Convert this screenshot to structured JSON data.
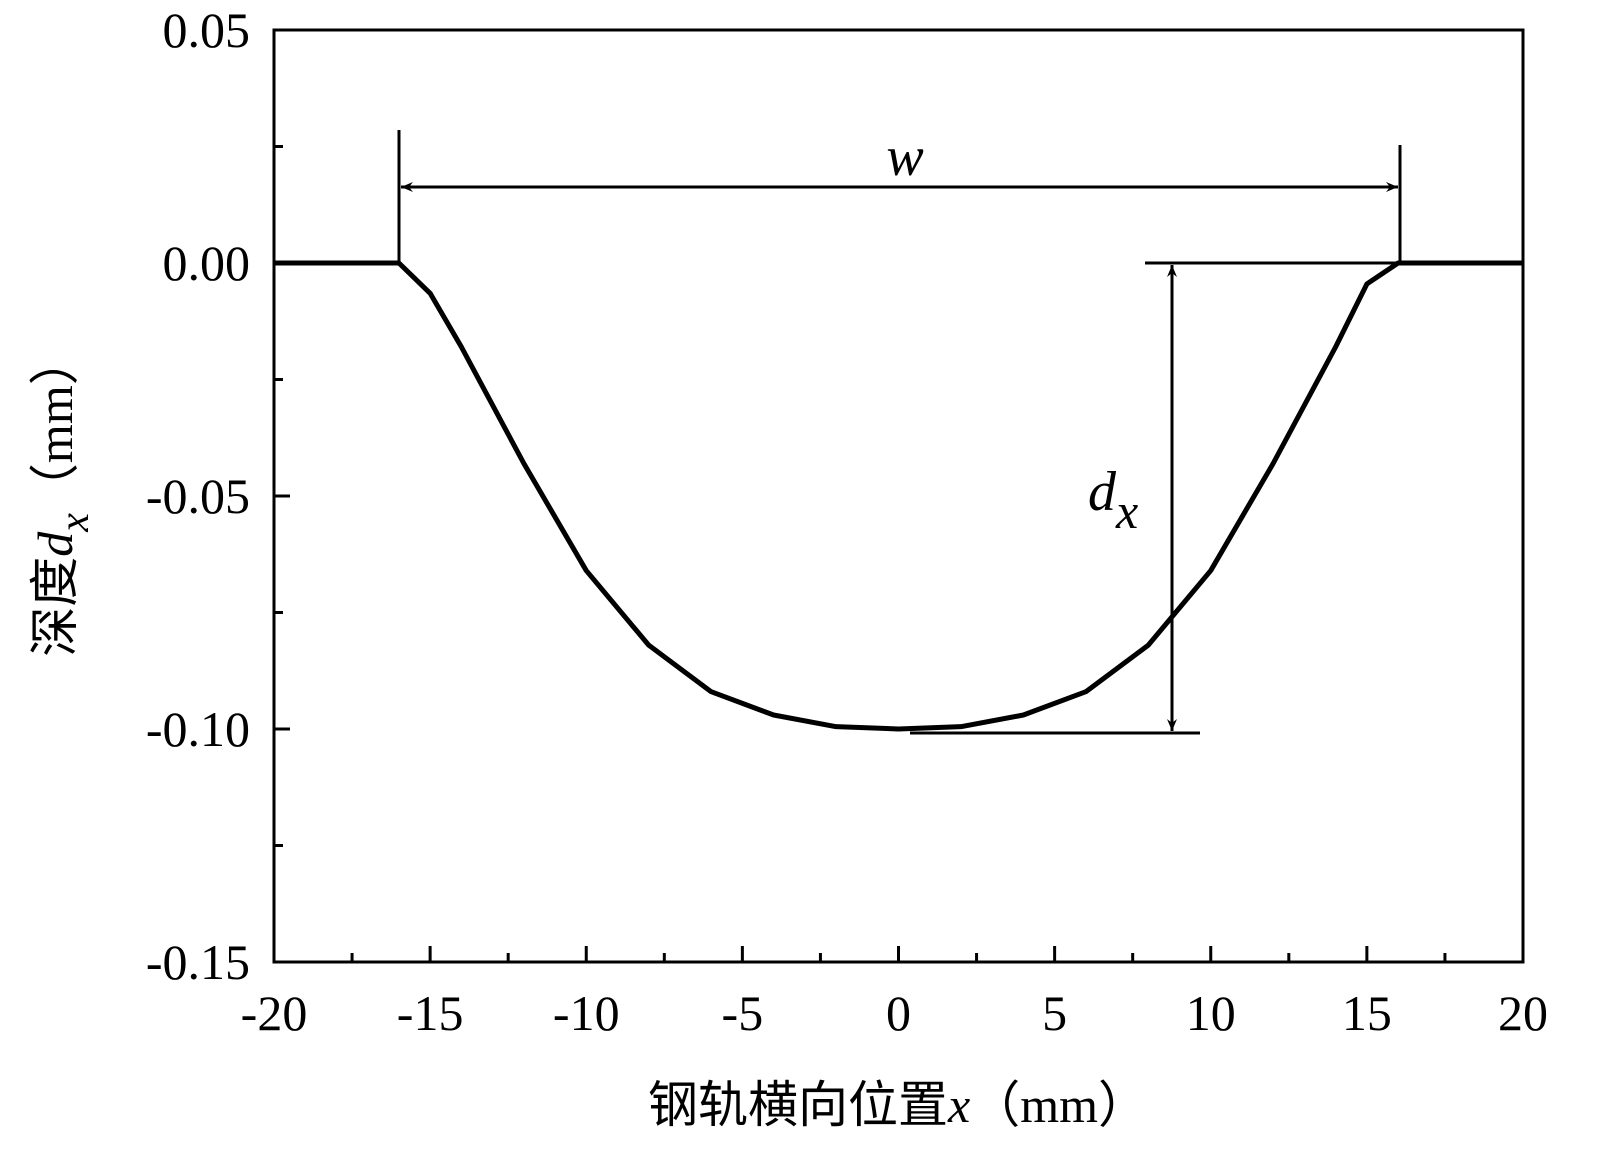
{
  "chart_data": {
    "type": "line",
    "xlabel": {
      "text": "钢轨横向位置",
      "var": "x",
      "unit": "（mm）"
    },
    "ylabel": {
      "text": "深度",
      "var": "d",
      "sub": "x",
      "unit": "（mm）"
    },
    "annotations": {
      "width": "w",
      "depth": "d",
      "depth_sub": "x"
    },
    "x": [
      -20,
      -16,
      -15,
      -14,
      -12,
      -10,
      -8,
      -6,
      -4,
      -2,
      0,
      2,
      4,
      6,
      8,
      10,
      12,
      14,
      15,
      16,
      20
    ],
    "series": [
      {
        "color": "#000000",
        "values": [
          0,
          0,
          -0.0065,
          -0.018,
          -0.043,
          -0.066,
          -0.082,
          -0.092,
          -0.097,
          -0.0995,
          -0.1,
          -0.0995,
          -0.097,
          -0.092,
          -0.082,
          -0.066,
          -0.043,
          -0.018,
          -0.0045,
          0,
          0
        ]
      }
    ],
    "xlim": [
      -20,
      20
    ],
    "xticks": [
      -20,
      -15,
      -10,
      -5,
      0,
      5,
      10,
      15,
      20
    ],
    "xminorticks": [
      -17.5,
      -12.5,
      -7.5,
      -2.5,
      2.5,
      7.5,
      12.5,
      17.5
    ],
    "ylim": [
      -0.15,
      0.05
    ],
    "yticks": [
      {
        "value": -0.15,
        "label": "-0.15"
      },
      {
        "value": -0.1,
        "label": "-0.10"
      },
      -0.05,
      {
        "value": 0,
        "label": "0.00"
      },
      0.05
    ],
    "yminorticks": [
      -0.125,
      -0.075,
      -0.025,
      0.025
    ]
  }
}
